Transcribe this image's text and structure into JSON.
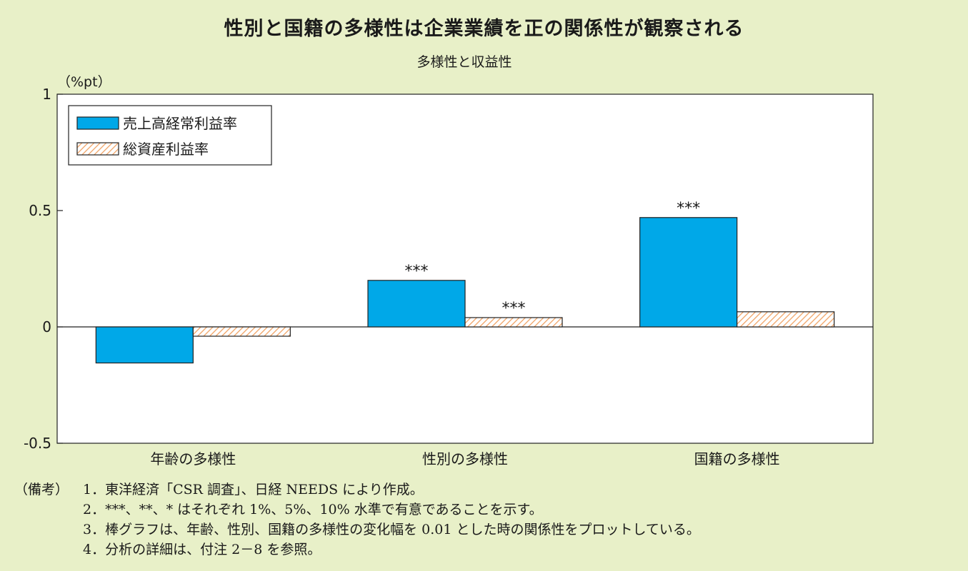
{
  "title": "性別と国籍の多様性は企業業績を正の関係性が観察される",
  "subtitle": "多様性と収益性",
  "chart_data": {
    "type": "bar",
    "unit_label": "（%pt）",
    "categories": [
      "年齢の多様性",
      "性別の多様性",
      "国籍の多様性"
    ],
    "series": [
      {
        "name": "売上高経常利益率",
        "values": [
          -0.155,
          0.2,
          0.47
        ],
        "significance": [
          "",
          "***",
          "***"
        ],
        "color": "#00a8e8",
        "pattern": "solid"
      },
      {
        "name": "総資産利益率",
        "values": [
          -0.04,
          0.04,
          0.065
        ],
        "significance": [
          "",
          "***",
          ""
        ],
        "color": "#f0a060",
        "pattern": "hatched"
      }
    ],
    "ylim": [
      -0.5,
      1
    ],
    "yticks": [
      -0.5,
      0,
      0.5,
      1
    ],
    "ytick_labels": [
      "-0.5",
      "0",
      "0.5",
      "1"
    ],
    "grid": false,
    "legend_position": "top-left"
  },
  "notes": {
    "head": "（備考）",
    "lines": [
      "1．東洋経済「CSR 調査」、日経 NEEDS により作成。",
      "2．***、**、* はそれぞれ 1%、5%、10% 水準で有意であることを示す。",
      "3．棒グラフは、年齢、性別、国籍の多様性の変化幅を 0.01 とした時の関係性をプロットしている。",
      "4．分析の詳細は、付注 2－8 を参照。"
    ]
  }
}
